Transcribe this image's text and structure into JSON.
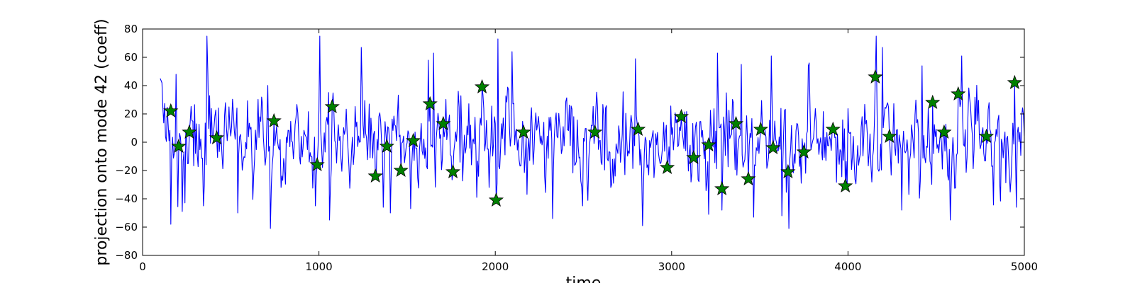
{
  "chart_data": {
    "type": "line",
    "title": "",
    "xlabel": "time",
    "ylabel": "projection onto mode 42 (coeff)",
    "xlim": [
      0,
      5000
    ],
    "ylim": [
      -80,
      80
    ],
    "xticks": [
      0,
      1000,
      2000,
      3000,
      4000,
      5000
    ],
    "xtick_labels": [
      "0",
      "1000",
      "2000",
      "3000",
      "4000",
      "5000"
    ],
    "yticks": [
      -80,
      -60,
      -40,
      -20,
      0,
      20,
      40,
      60,
      80
    ],
    "ytick_labels": [
      "−80",
      "−60",
      "−40",
      "−20",
      "0",
      "20",
      "40",
      "60",
      "80"
    ],
    "grid": false,
    "legend": "none",
    "series": [
      {
        "kind": "line",
        "color": "#0000ff",
        "x_start": 100,
        "x_end": 5000,
        "x_step": 5,
        "approx_std": 22,
        "peaks": [
          {
            "x": 160,
            "y": -58
          },
          {
            "x": 190,
            "y": 48
          },
          {
            "x": 225,
            "y": -49
          },
          {
            "x": 345,
            "y": -45
          },
          {
            "x": 365,
            "y": 75
          },
          {
            "x": 540,
            "y": -50
          },
          {
            "x": 725,
            "y": -61
          },
          {
            "x": 980,
            "y": -45
          },
          {
            "x": 1005,
            "y": 75
          },
          {
            "x": 1060,
            "y": -55
          },
          {
            "x": 1240,
            "y": 67
          },
          {
            "x": 1365,
            "y": -46
          },
          {
            "x": 1405,
            "y": -50
          },
          {
            "x": 1520,
            "y": -47
          },
          {
            "x": 1620,
            "y": 58
          },
          {
            "x": 1650,
            "y": 63
          },
          {
            "x": 1895,
            "y": -39
          },
          {
            "x": 1965,
            "y": -32
          },
          {
            "x": 2015,
            "y": 73
          },
          {
            "x": 2095,
            "y": 64
          },
          {
            "x": 2325,
            "y": -54
          },
          {
            "x": 2495,
            "y": -45
          },
          {
            "x": 2655,
            "y": -32
          },
          {
            "x": 2795,
            "y": 59
          },
          {
            "x": 2835,
            "y": -59
          },
          {
            "x": 3210,
            "y": -51
          },
          {
            "x": 3260,
            "y": 63
          },
          {
            "x": 3285,
            "y": -48
          },
          {
            "x": 3395,
            "y": 55
          },
          {
            "x": 3465,
            "y": -53
          },
          {
            "x": 3565,
            "y": 61
          },
          {
            "x": 3625,
            "y": -52
          },
          {
            "x": 3665,
            "y": -61
          },
          {
            "x": 3775,
            "y": 54
          },
          {
            "x": 4160,
            "y": 75
          },
          {
            "x": 4195,
            "y": 67
          },
          {
            "x": 4305,
            "y": -48
          },
          {
            "x": 4420,
            "y": 54
          },
          {
            "x": 4580,
            "y": -55
          },
          {
            "x": 4645,
            "y": 61
          },
          {
            "x": 4955,
            "y": -46
          }
        ]
      },
      {
        "kind": "scatter",
        "marker": "star",
        "color": "#008000",
        "points": [
          {
            "x": 160,
            "y": 22
          },
          {
            "x": 205,
            "y": -3
          },
          {
            "x": 265,
            "y": 7
          },
          {
            "x": 420,
            "y": 3
          },
          {
            "x": 745,
            "y": 15
          },
          {
            "x": 990,
            "y": -16
          },
          {
            "x": 1075,
            "y": 25
          },
          {
            "x": 1320,
            "y": -24
          },
          {
            "x": 1385,
            "y": -3
          },
          {
            "x": 1465,
            "y": -20
          },
          {
            "x": 1535,
            "y": 1
          },
          {
            "x": 1630,
            "y": 27
          },
          {
            "x": 1705,
            "y": 13
          },
          {
            "x": 1760,
            "y": -21
          },
          {
            "x": 1925,
            "y": 39
          },
          {
            "x": 2005,
            "y": -41
          },
          {
            "x": 2160,
            "y": 7
          },
          {
            "x": 2565,
            "y": 7
          },
          {
            "x": 2810,
            "y": 9
          },
          {
            "x": 2975,
            "y": -18
          },
          {
            "x": 3055,
            "y": 18
          },
          {
            "x": 3125,
            "y": -11
          },
          {
            "x": 3210,
            "y": -2
          },
          {
            "x": 3285,
            "y": -33
          },
          {
            "x": 3365,
            "y": 13
          },
          {
            "x": 3435,
            "y": -26
          },
          {
            "x": 3505,
            "y": 9
          },
          {
            "x": 3575,
            "y": -4
          },
          {
            "x": 3660,
            "y": -21
          },
          {
            "x": 3750,
            "y": -7
          },
          {
            "x": 3915,
            "y": 9
          },
          {
            "x": 3985,
            "y": -31
          },
          {
            "x": 4155,
            "y": 46
          },
          {
            "x": 4235,
            "y": 4
          },
          {
            "x": 4480,
            "y": 28
          },
          {
            "x": 4545,
            "y": 7
          },
          {
            "x": 4625,
            "y": 34
          },
          {
            "x": 4785,
            "y": 4
          },
          {
            "x": 4945,
            "y": 42
          }
        ]
      }
    ]
  }
}
